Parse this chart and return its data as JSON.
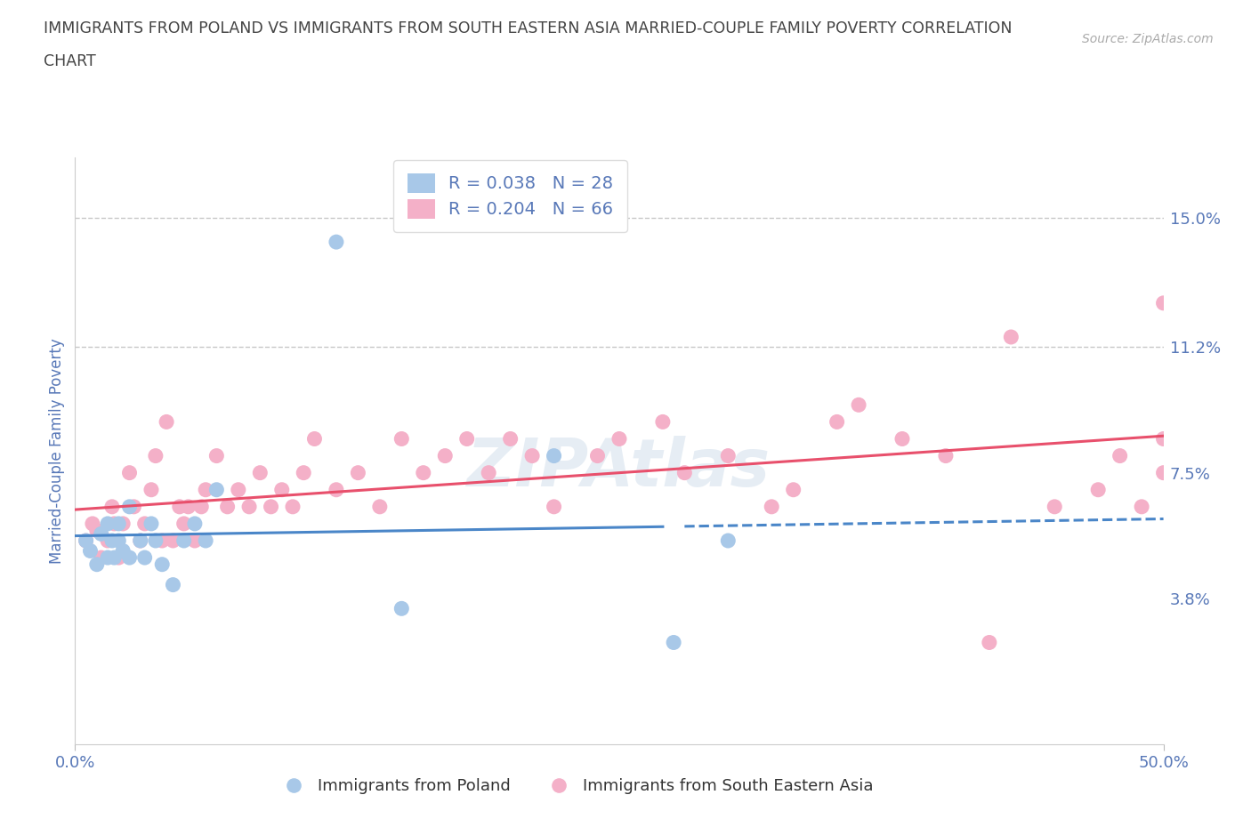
{
  "title_line1": "IMMIGRANTS FROM POLAND VS IMMIGRANTS FROM SOUTH EASTERN ASIA MARRIED-COUPLE FAMILY POVERTY CORRELATION",
  "title_line2": "CHART",
  "source": "Source: ZipAtlas.com",
  "ylabel": "Married-Couple Family Poverty",
  "xlim": [
    0.0,
    0.5
  ],
  "ylim": [
    -0.005,
    0.168
  ],
  "ytick_vals": [
    0.038,
    0.075,
    0.112,
    0.15
  ],
  "ytick_labels": [
    "3.8%",
    "7.5%",
    "11.2%",
    "15.0%"
  ],
  "xtick_vals": [
    0.0,
    0.5
  ],
  "xtick_labels": [
    "0.0%",
    "50.0%"
  ],
  "hlines": [
    0.15,
    0.112
  ],
  "poland_color": "#a8c8e8",
  "sea_color": "#f4b0c8",
  "trend_poland_color": "#4a86c8",
  "trend_sea_color": "#e8506c",
  "legend_r_poland": "R = 0.038",
  "legend_n_poland": "N = 28",
  "legend_r_sea": "R = 0.204",
  "legend_n_sea": "N = 66",
  "poland_x": [
    0.005,
    0.007,
    0.01,
    0.012,
    0.015,
    0.015,
    0.017,
    0.018,
    0.02,
    0.02,
    0.022,
    0.025,
    0.025,
    0.03,
    0.032,
    0.035,
    0.037,
    0.04,
    0.045,
    0.05,
    0.055,
    0.06,
    0.065,
    0.12,
    0.15,
    0.22,
    0.275,
    0.3
  ],
  "poland_y": [
    0.055,
    0.052,
    0.048,
    0.057,
    0.05,
    0.06,
    0.055,
    0.05,
    0.055,
    0.06,
    0.052,
    0.05,
    0.065,
    0.055,
    0.05,
    0.06,
    0.055,
    0.048,
    0.042,
    0.055,
    0.06,
    0.055,
    0.07,
    0.143,
    0.035,
    0.08,
    0.025,
    0.055
  ],
  "sea_x": [
    0.005,
    0.008,
    0.01,
    0.012,
    0.015,
    0.017,
    0.018,
    0.02,
    0.022,
    0.025,
    0.027,
    0.03,
    0.032,
    0.035,
    0.037,
    0.04,
    0.042,
    0.045,
    0.048,
    0.05,
    0.052,
    0.055,
    0.058,
    0.06,
    0.065,
    0.07,
    0.075,
    0.08,
    0.085,
    0.09,
    0.095,
    0.1,
    0.105,
    0.11,
    0.12,
    0.13,
    0.14,
    0.15,
    0.16,
    0.17,
    0.18,
    0.19,
    0.2,
    0.21,
    0.22,
    0.24,
    0.25,
    0.27,
    0.28,
    0.3,
    0.32,
    0.33,
    0.35,
    0.36,
    0.38,
    0.4,
    0.42,
    0.43,
    0.45,
    0.47,
    0.48,
    0.49,
    0.5,
    0.505,
    0.5,
    0.5
  ],
  "sea_y": [
    0.055,
    0.06,
    0.058,
    0.05,
    0.055,
    0.065,
    0.06,
    0.05,
    0.06,
    0.075,
    0.065,
    0.055,
    0.06,
    0.07,
    0.08,
    0.055,
    0.09,
    0.055,
    0.065,
    0.06,
    0.065,
    0.055,
    0.065,
    0.07,
    0.08,
    0.065,
    0.07,
    0.065,
    0.075,
    0.065,
    0.07,
    0.065,
    0.075,
    0.085,
    0.07,
    0.075,
    0.065,
    0.085,
    0.075,
    0.08,
    0.085,
    0.075,
    0.085,
    0.08,
    0.065,
    0.08,
    0.085,
    0.09,
    0.075,
    0.08,
    0.065,
    0.07,
    0.09,
    0.095,
    0.085,
    0.08,
    0.025,
    0.115,
    0.065,
    0.07,
    0.08,
    0.065,
    0.085,
    0.09,
    0.075,
    0.125
  ],
  "background_color": "#ffffff",
  "grid_color": "#c8c8c8",
  "text_color": "#5878b8",
  "title_color": "#444444",
  "trend_solid_end": 0.27,
  "trend_dashed_start": 0.28
}
